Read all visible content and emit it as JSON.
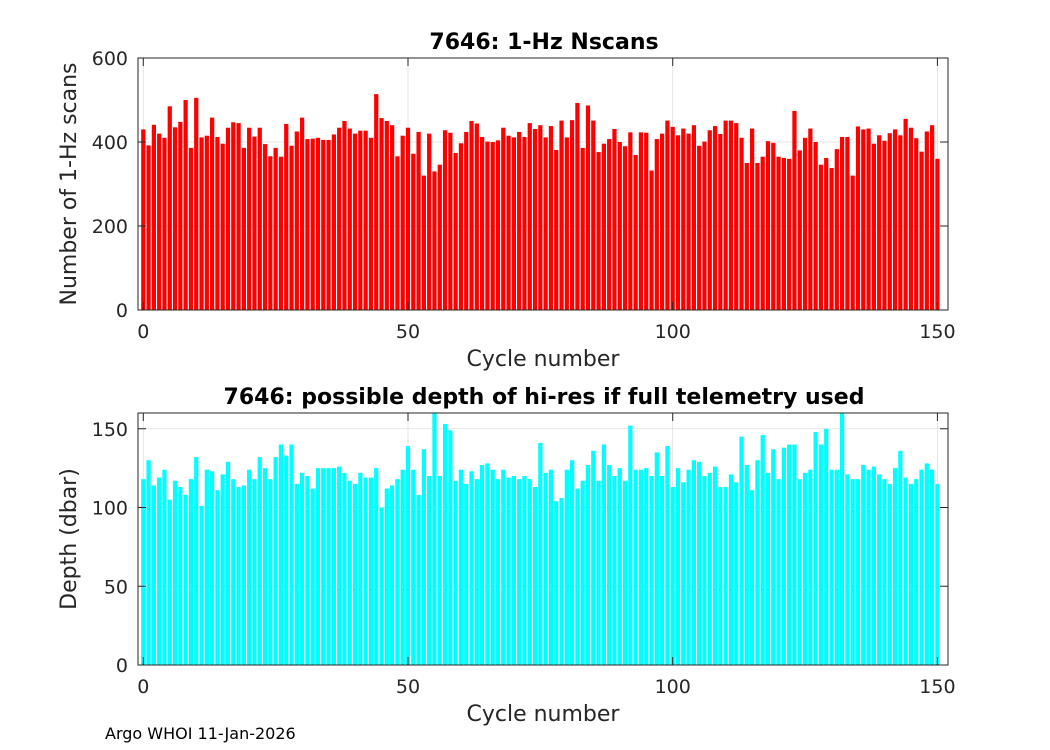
{
  "chart_data": [
    {
      "type": "bar",
      "title": "7646: 1-Hz Nscans",
      "xlabel": "Cycle number",
      "ylabel": "Number of 1-Hz scans",
      "xlim": [
        -1,
        152
      ],
      "ylim": [
        0,
        600
      ],
      "xticks": [
        0,
        50,
        100,
        150
      ],
      "yticks": [
        0,
        200,
        400,
        600
      ],
      "grid": true,
      "bar_color": "#ff0000",
      "x_start": 0,
      "values": [
        430,
        392,
        441,
        420,
        410,
        485,
        435,
        448,
        500,
        386,
        505,
        411,
        415,
        458,
        412,
        396,
        434,
        447,
        445,
        386,
        434,
        413,
        434,
        395,
        366,
        386,
        365,
        443,
        391,
        425,
        458,
        407,
        408,
        410,
        405,
        405,
        418,
        434,
        450,
        432,
        420,
        427,
        427,
        410,
        514,
        457,
        450,
        440,
        366,
        415,
        434,
        372,
        424,
        320,
        420,
        330,
        346,
        428,
        422,
        374,
        397,
        424,
        450,
        444,
        412,
        401,
        400,
        404,
        434,
        415,
        411,
        424,
        412,
        445,
        431,
        440,
        411,
        438,
        381,
        451,
        411,
        452,
        493,
        386,
        487,
        451,
        376,
        396,
        407,
        431,
        400,
        390,
        423,
        369,
        423,
        422,
        332,
        407,
        420,
        451,
        436,
        416,
        432,
        420,
        440,
        391,
        401,
        428,
        438,
        419,
        451,
        451,
        445,
        410,
        350,
        432,
        350,
        365,
        402,
        398,
        365,
        362,
        360,
        474,
        380,
        410,
        432,
        400,
        346,
        362,
        338,
        383,
        412,
        412,
        320,
        437,
        430,
        432,
        396,
        416,
        403,
        421,
        430,
        416,
        455,
        434,
        409,
        377,
        425,
        440,
        360
      ]
    },
    {
      "type": "bar",
      "title": "7646: possible depth of hi-res if full telemetry used",
      "xlabel": "Cycle number",
      "ylabel": "Depth (dbar)",
      "xlim": [
        -1,
        152
      ],
      "ylim": [
        0,
        160
      ],
      "xticks": [
        0,
        50,
        100,
        150
      ],
      "yticks": [
        0,
        50,
        100,
        150
      ],
      "grid": true,
      "bar_color": "#00ffff",
      "x_start": 0,
      "values": [
        118,
        130,
        114,
        119,
        124,
        105,
        117,
        113,
        108,
        118,
        132,
        101,
        124,
        123,
        111,
        121,
        129,
        118,
        113,
        114,
        124,
        118,
        132,
        125,
        118,
        132,
        140,
        133,
        140,
        115,
        122,
        120,
        112,
        125,
        125,
        125,
        125,
        126,
        122,
        117,
        115,
        122,
        119,
        119,
        125,
        100,
        112,
        114,
        118,
        124,
        139,
        124,
        108,
        137,
        120,
        160,
        120,
        153,
        149,
        117,
        124,
        115,
        123,
        118,
        127,
        128,
        124,
        118,
        124,
        119,
        120,
        118,
        120,
        118,
        113,
        141,
        122,
        124,
        104,
        106,
        124,
        130,
        112,
        117,
        127,
        136,
        117,
        140,
        127,
        120,
        125,
        117,
        152,
        124,
        124,
        125,
        120,
        135,
        120,
        139,
        113,
        125,
        116,
        124,
        130,
        129,
        120,
        122,
        126,
        113,
        113,
        121,
        116,
        145,
        127,
        111,
        130,
        146,
        122,
        137,
        118,
        138,
        140,
        140,
        118,
        122,
        124,
        148,
        140,
        150,
        124,
        124,
        160,
        121,
        118,
        118,
        127,
        124,
        126,
        121,
        118,
        115,
        125,
        136,
        119,
        115,
        118,
        124,
        128,
        124,
        115
      ]
    }
  ],
  "footer": "Argo WHOI 11-Jan-2026"
}
